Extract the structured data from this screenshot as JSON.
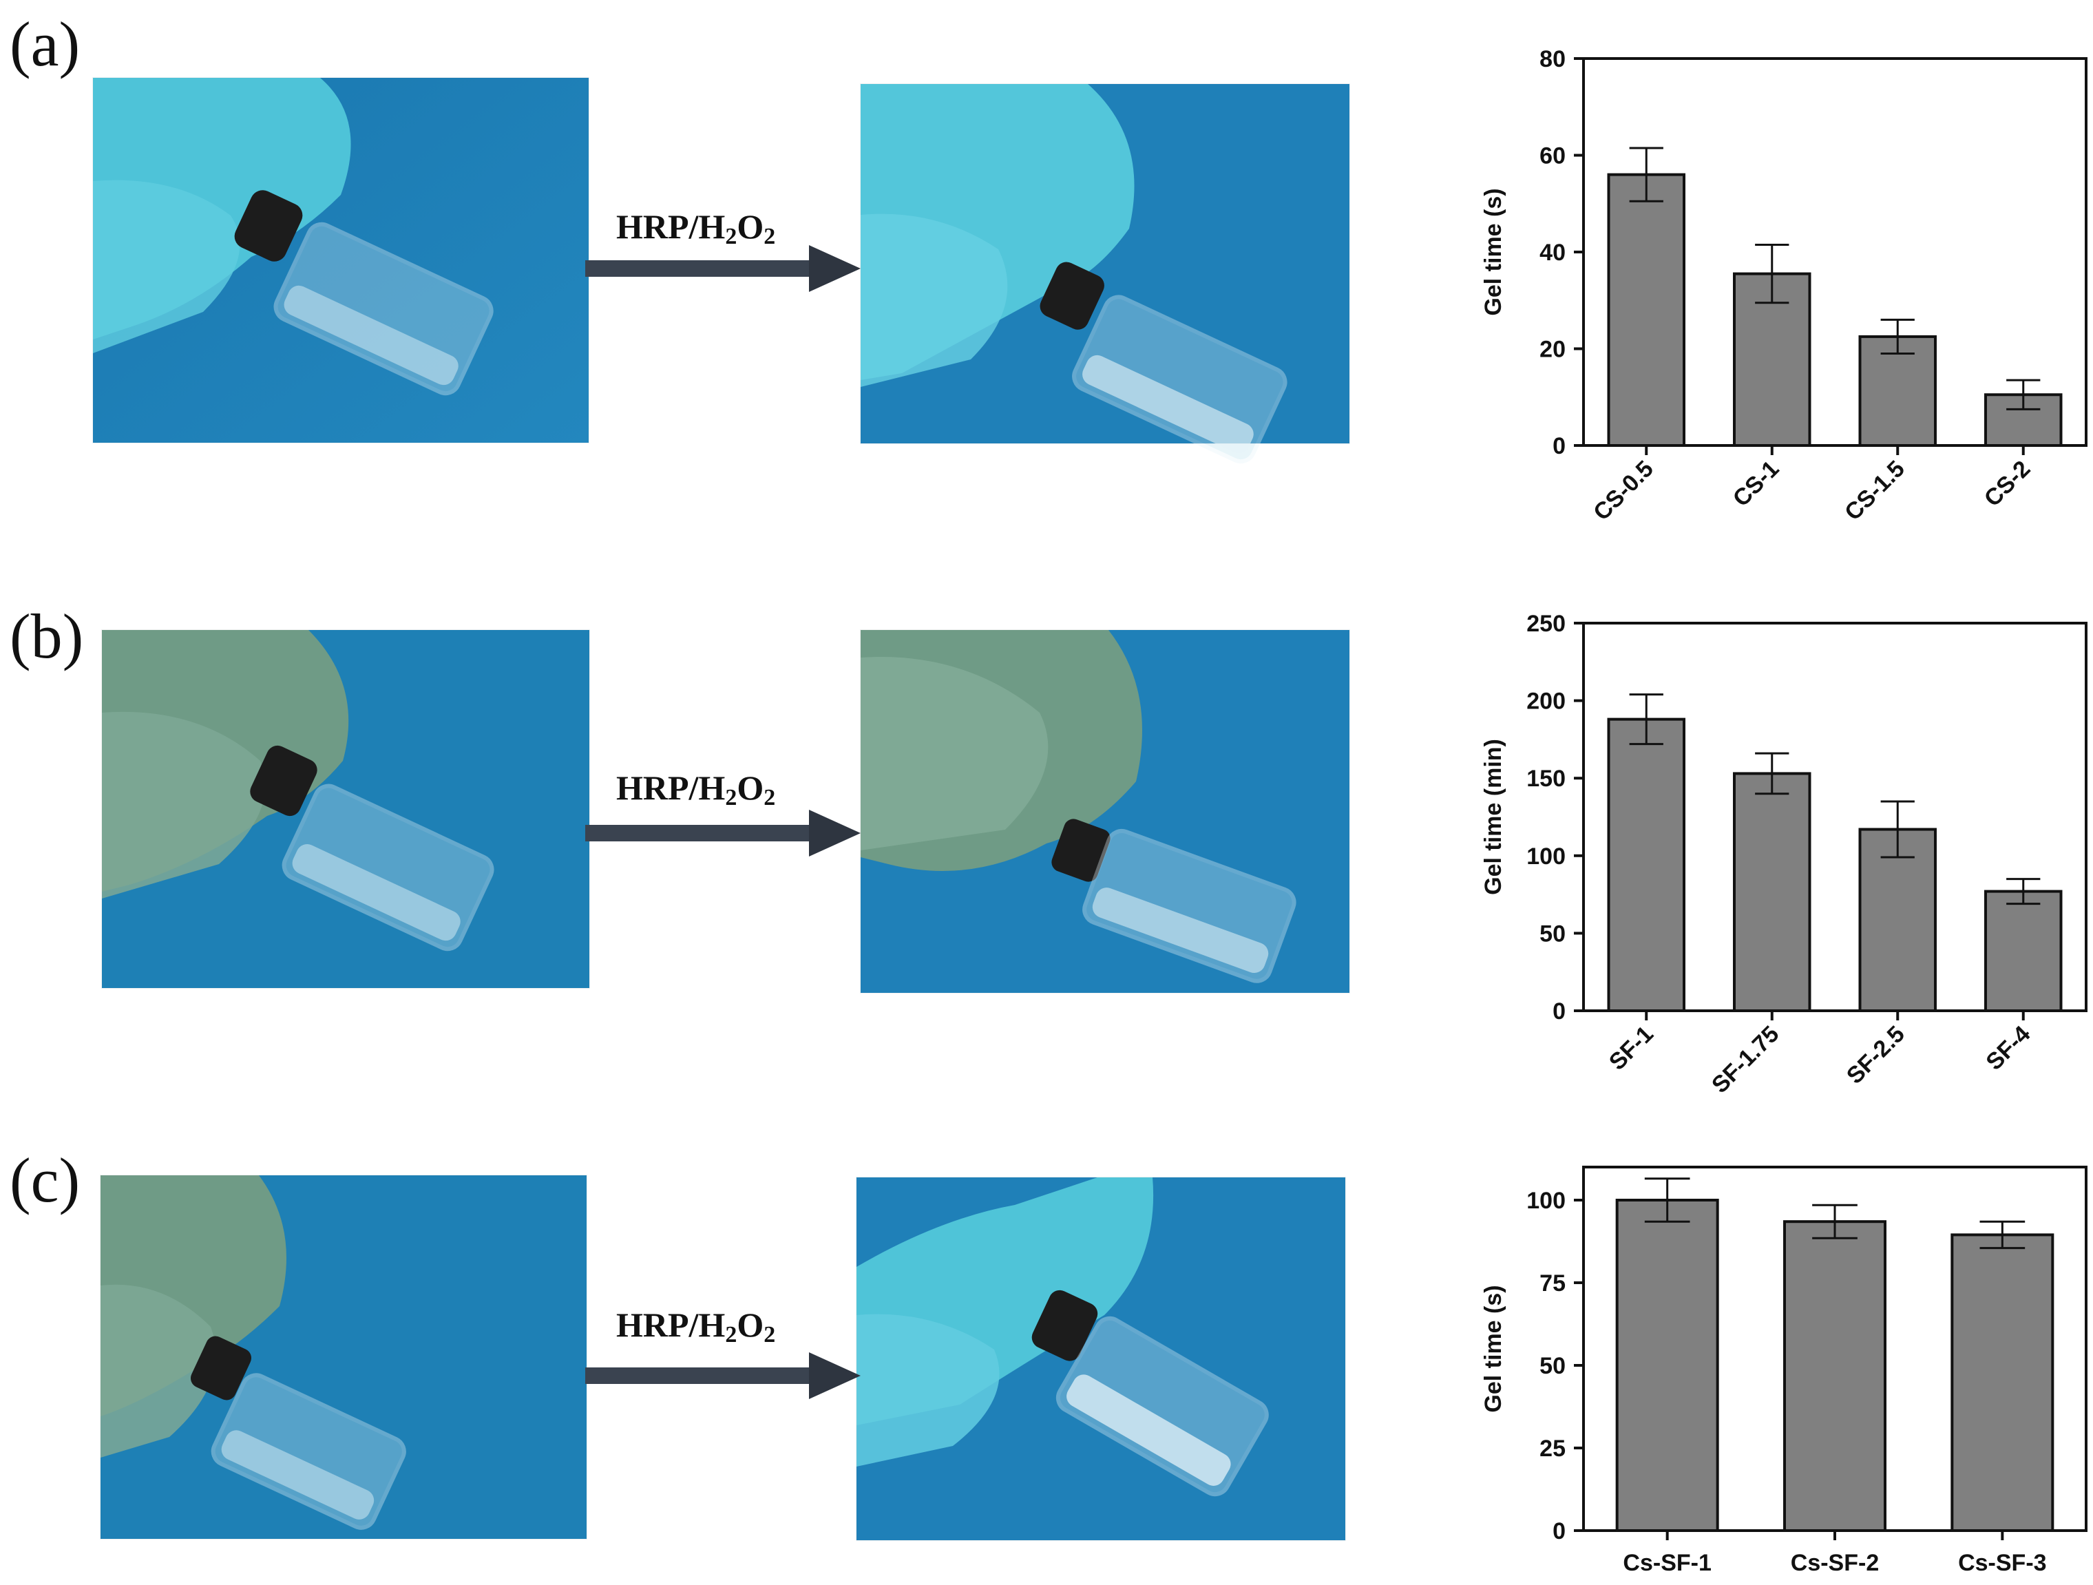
{
  "panels": [
    {
      "letter": "(a)",
      "reagent": {
        "base": "HRP/H",
        "sub1": "2",
        "mid": "O",
        "sub2": "2"
      },
      "photos": [
        "vial-before-icon",
        "vial-after-icon"
      ]
    },
    {
      "letter": "(b)",
      "reagent": {
        "base": "HRP/H",
        "sub1": "2",
        "mid": "O",
        "sub2": "2"
      },
      "photos": [
        "vial-before-icon",
        "vial-after-icon"
      ]
    },
    {
      "letter": "(c)",
      "reagent": {
        "base": "HRP/H",
        "sub1": "2",
        "mid": "O",
        "sub2": "2"
      },
      "photos": [
        "vial-before-icon",
        "vial-after-icon"
      ]
    }
  ],
  "colors": {
    "photo_bg": "#1f7fb4",
    "glove_cyan": "#4fc4d6",
    "glove_green": "#6f9a84",
    "bar_fill": "#808080",
    "arrow": "#3a4350"
  },
  "chart_data": [
    {
      "type": "bar",
      "categories": [
        "CS-0.5",
        "CS-1",
        "CS-1.5",
        "CS-2"
      ],
      "values": [
        56,
        35.5,
        22.5,
        10.5
      ],
      "errors": [
        5.5,
        6,
        3.5,
        3
      ],
      "ylabel": "Gel time (s)",
      "ylim": [
        0,
        80
      ],
      "yticks": [
        0,
        20,
        40,
        60,
        80
      ],
      "tick_rotation": -45,
      "grid": false
    },
    {
      "type": "bar",
      "categories": [
        "SF-1",
        "SF-1.75",
        "SF-2.5",
        "SF-4"
      ],
      "values": [
        188,
        153,
        117,
        77
      ],
      "errors": [
        16,
        13,
        18,
        8
      ],
      "ylabel": "Gel time (min)",
      "ylim": [
        0,
        250
      ],
      "yticks": [
        0,
        50,
        100,
        150,
        200,
        250
      ],
      "tick_rotation": -45,
      "grid": false
    },
    {
      "type": "bar",
      "categories": [
        "Cs-SF-1",
        "Cs-SF-2",
        "Cs-SF-3"
      ],
      "values": [
        100,
        93.5,
        89.5
      ],
      "errors": [
        6.5,
        5,
        4
      ],
      "ylabel": "Gel time (s)",
      "ylim": [
        0,
        110
      ],
      "yticks": [
        0,
        25,
        50,
        75,
        100
      ],
      "tick_rotation": 0,
      "grid": false
    }
  ]
}
